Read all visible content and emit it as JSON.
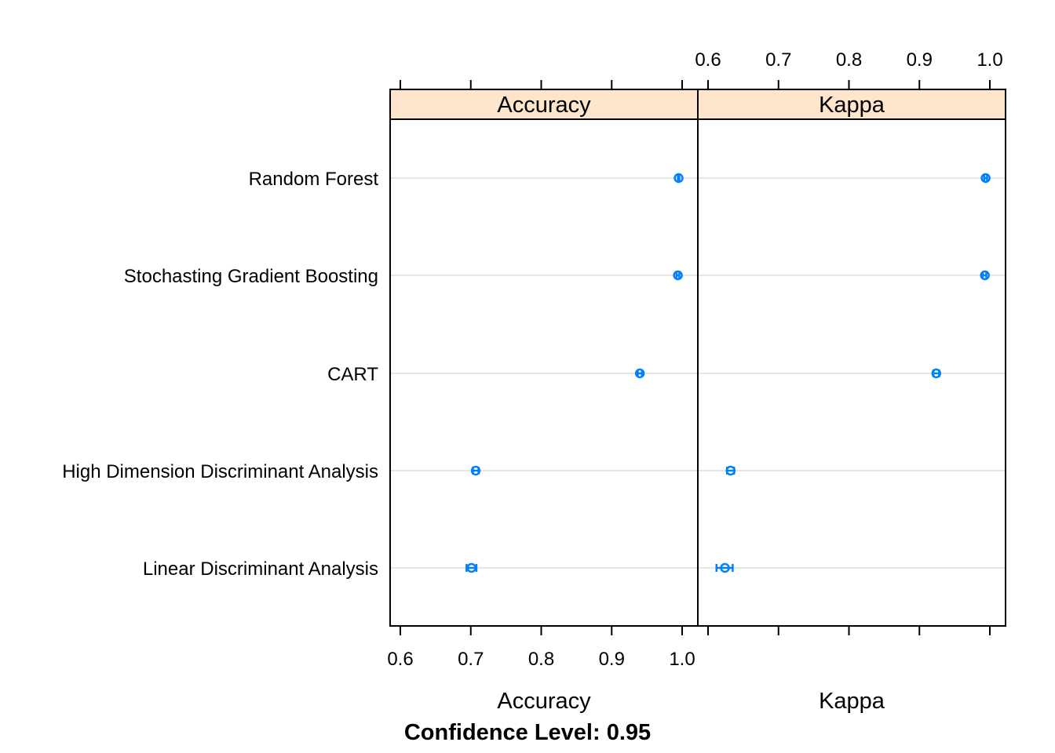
{
  "chart_data": {
    "type": "dotplot",
    "categories": [
      "Random Forest",
      "Stochasting Gradient Boosting",
      "CART",
      "High Dimension Discriminant Analysis",
      "Linear Discriminant Analysis"
    ],
    "panels": [
      {
        "name": "Accuracy",
        "xlabel": "Accuracy",
        "xlim": [
          0.6,
          1.0
        ],
        "ticks": [
          "0.6",
          "0.7",
          "0.8",
          "0.9",
          "1.0"
        ],
        "tick_side": "bottom",
        "points": [
          {
            "estimate": 0.995,
            "lower": 0.994,
            "upper": 0.996
          },
          {
            "estimate": 0.994,
            "lower": 0.992,
            "upper": 0.996
          },
          {
            "estimate": 0.94,
            "lower": 0.937,
            "upper": 0.943
          },
          {
            "estimate": 0.707,
            "lower": 0.703,
            "upper": 0.711
          },
          {
            "estimate": 0.701,
            "lower": 0.694,
            "upper": 0.708
          }
        ]
      },
      {
        "name": "Kappa",
        "xlabel": "Kappa",
        "xlim": [
          0.6,
          1.0
        ],
        "ticks": [
          "0.6",
          "0.7",
          "0.8",
          "0.9",
          "1.0"
        ],
        "tick_side": "top",
        "points": [
          {
            "estimate": 0.994,
            "lower": 0.992,
            "upper": 0.996
          },
          {
            "estimate": 0.993,
            "lower": 0.99,
            "upper": 0.995
          },
          {
            "estimate": 0.924,
            "lower": 0.92,
            "upper": 0.928
          },
          {
            "estimate": 0.632,
            "lower": 0.627,
            "upper": 0.637
          },
          {
            "estimate": 0.624,
            "lower": 0.612,
            "upper": 0.635
          }
        ]
      }
    ],
    "footnote": "Confidence Level: 0.95",
    "grid": true,
    "colors": {
      "point": "#0080ff",
      "strip": "#ffe5cc",
      "grid": "#e6e6e6"
    }
  }
}
